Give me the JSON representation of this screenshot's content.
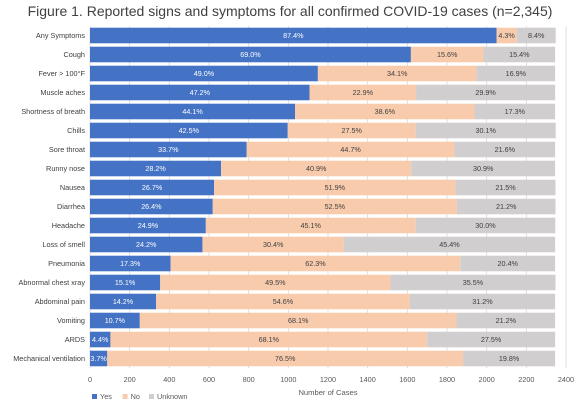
{
  "chart_data": {
    "type": "bar",
    "orientation": "horizontal",
    "stacked": true,
    "title": "Figure 1. Reported signs and symptoms for all confirmed COVID-19 cases (n=2,345)",
    "xlabel": "Number of Cases",
    "ylabel": "",
    "xlim": [
      0,
      2400
    ],
    "xticks": [
      "0",
      "200",
      "400",
      "600",
      "800",
      "1000",
      "1200",
      "1400",
      "1600",
      "1800",
      "2000",
      "2200",
      "2400"
    ],
    "grid": true,
    "legend_position": "bottom-left",
    "categories": [
      "Any Symptoms",
      "Cough",
      "Fever > 100°F",
      "Muscle aches",
      "Shortness of breath",
      "Chills",
      "Sore throat",
      "Runny nose",
      "Nausea",
      "Diarrhea",
      "Headache",
      "Loss of smell",
      "Pneumonia",
      "Abnormal chest xray",
      "Abdominal pain",
      "Vomiting",
      "ARDS",
      "Mechanical ventilation"
    ],
    "series": [
      {
        "name": "Yes",
        "color": "#4472C4",
        "values": [
          2050,
          1618,
          1149,
          1107,
          1034,
          997,
          790,
          661,
          626,
          619,
          584,
          567,
          406,
          354,
          333,
          251,
          103,
          87
        ],
        "labels": [
          "87.4%",
          "69.0%",
          "49.0%",
          "47.2%",
          "44.1%",
          "42.5%",
          "33.7%",
          "28.2%",
          "26.7%",
          "26.4%",
          "24.9%",
          "24.2%",
          "17.3%",
          "15.1%",
          "14.2%",
          "10.7%",
          "4.4%",
          "3.7%"
        ]
      },
      {
        "name": "No",
        "color": "#F8CBAD",
        "values": [
          101,
          366,
          800,
          537,
          905,
          645,
          1048,
          959,
          1217,
          1231,
          1058,
          713,
          1461,
          1161,
          1280,
          1597,
          1597,
          1794
        ],
        "labels": [
          "4.3%",
          "15.6%",
          "34.1%",
          "22.9%",
          "38.6%",
          "27.5%",
          "44.7%",
          "40.9%",
          "51.9%",
          "52.5%",
          "45.1%",
          "30.4%",
          "62.3%",
          "49.5%",
          "54.6%",
          "68.1%",
          "68.1%",
          "76.5%"
        ]
      },
      {
        "name": "Unknown",
        "color": "#D0CECE",
        "values": [
          197,
          361,
          396,
          701,
          406,
          706,
          507,
          725,
          504,
          497,
          704,
          1065,
          478,
          832,
          732,
          497,
          645,
          464
        ],
        "labels": [
          "8.4%",
          "15.4%",
          "16.9%",
          "29.9%",
          "17.3%",
          "30.1%",
          "21.6%",
          "30.9%",
          "21.5%",
          "21.2%",
          "30.0%",
          "45.4%",
          "20.4%",
          "35.5%",
          "31.2%",
          "21.2%",
          "27.5%",
          "19.8%"
        ]
      }
    ]
  }
}
